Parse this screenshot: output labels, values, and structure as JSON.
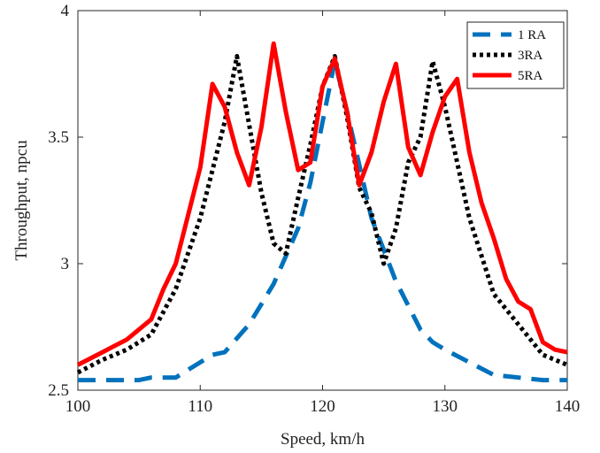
{
  "chart_data": {
    "type": "line",
    "xlabel": "Speed, km/h",
    "ylabel": "Throughput, npcu",
    "xlim": [
      100,
      140
    ],
    "ylim": [
      2.5,
      4
    ],
    "xticks": [
      100,
      110,
      120,
      130,
      140
    ],
    "yticks": [
      2.5,
      3,
      3.5,
      4
    ],
    "ytick_labels": [
      "2.5",
      "3",
      "3.5",
      "4"
    ],
    "grid": false,
    "legend_position": "top-right",
    "series": [
      {
        "name": "1 RA",
        "color": "#0072BD",
        "style": "dashed",
        "x": [
          100,
          103,
          105,
          106,
          108,
          110,
          111,
          112,
          114,
          116,
          118,
          119,
          120,
          121,
          122,
          124,
          126,
          128,
          129,
          130,
          132,
          134,
          136,
          138,
          140
        ],
        "y": [
          2.54,
          2.54,
          2.54,
          2.55,
          2.55,
          2.61,
          2.64,
          2.65,
          2.76,
          2.92,
          3.14,
          3.32,
          3.56,
          3.8,
          3.6,
          3.18,
          2.93,
          2.74,
          2.69,
          2.66,
          2.61,
          2.56,
          2.55,
          2.54,
          2.54
        ]
      },
      {
        "name": "3RA",
        "color": "#000000",
        "style": "dotted",
        "x": [
          100,
          102,
          104,
          106,
          108,
          110,
          112,
          113,
          114,
          115,
          116,
          117,
          118,
          119,
          120,
          121,
          122,
          123,
          124,
          125,
          126,
          127,
          128,
          129,
          130,
          131,
          132,
          134,
          136,
          138,
          140
        ],
        "y": [
          2.57,
          2.62,
          2.66,
          2.72,
          2.9,
          3.18,
          3.56,
          3.82,
          3.55,
          3.28,
          3.08,
          3.04,
          3.26,
          3.47,
          3.7,
          3.82,
          3.58,
          3.3,
          3.2,
          3.0,
          3.14,
          3.4,
          3.5,
          3.8,
          3.62,
          3.4,
          3.18,
          2.88,
          2.76,
          2.64,
          2.6
        ]
      },
      {
        "name": "5RA",
        "color": "#FF0000",
        "style": "solid",
        "x": [
          100,
          102,
          104,
          106,
          107,
          108,
          110,
          111,
          112,
          113,
          114,
          115,
          116,
          117,
          118,
          119,
          120,
          121,
          122,
          123,
          124,
          125,
          126,
          127,
          128,
          129,
          130,
          131,
          132,
          133,
          134,
          135,
          136,
          137,
          138,
          139,
          140
        ],
        "y": [
          2.6,
          2.65,
          2.7,
          2.78,
          2.9,
          3.0,
          3.38,
          3.71,
          3.62,
          3.44,
          3.31,
          3.54,
          3.87,
          3.6,
          3.37,
          3.4,
          3.7,
          3.81,
          3.6,
          3.31,
          3.44,
          3.64,
          3.79,
          3.46,
          3.35,
          3.52,
          3.66,
          3.73,
          3.44,
          3.24,
          3.1,
          2.94,
          2.85,
          2.82,
          2.69,
          2.66,
          2.65
        ]
      }
    ]
  }
}
